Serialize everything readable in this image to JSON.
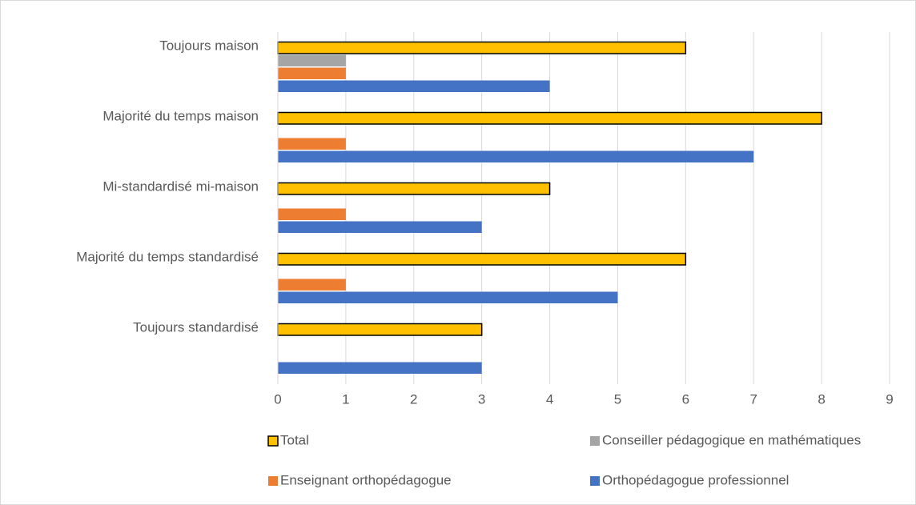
{
  "chart_data": {
    "type": "hbar",
    "categories": [
      "Toujours maison",
      "Majorité du temps maison",
      "Mi-standardisé mi-maison",
      "Majorité du temps standardisé",
      "Toujours standardisé"
    ],
    "series": [
      {
        "name": "Total",
        "color": "#ffc000",
        "values": [
          6,
          8,
          4,
          6,
          3
        ]
      },
      {
        "name": "Conseiller pédagogique en mathématiques",
        "color": "#a5a5a5",
        "values": [
          1,
          0,
          0,
          0,
          0
        ]
      },
      {
        "name": "Enseignant orthopédagogue",
        "color": "#ed7d31",
        "values": [
          1,
          1,
          1,
          1,
          0
        ]
      },
      {
        "name": "Orthopédagogue professionnel",
        "color": "#4472c4",
        "values": [
          4,
          7,
          3,
          5,
          3
        ]
      }
    ],
    "xlim": [
      0,
      9
    ],
    "xticks": [
      0,
      1,
      2,
      3,
      4,
      5,
      6,
      7,
      8,
      9
    ],
    "grid": true,
    "legend": "bottom"
  }
}
